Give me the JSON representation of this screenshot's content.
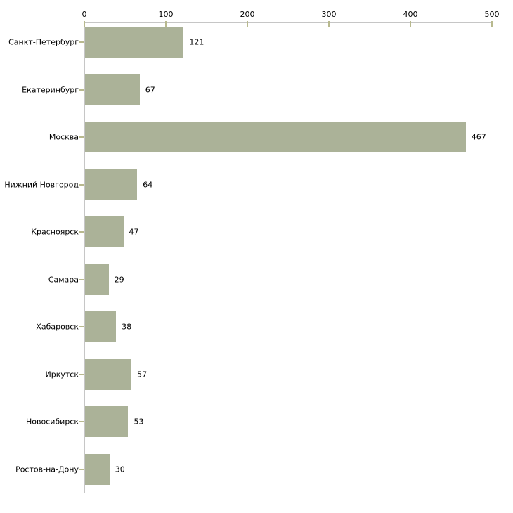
{
  "chart_data": {
    "type": "bar",
    "orientation": "horizontal",
    "title": "",
    "xlabel": "",
    "ylabel": "",
    "categories": [
      "Санкт-Петербург",
      "Екатеринбург",
      "Москва",
      "Нижний Новгород",
      "Красноярск",
      "Самара",
      "Хабаровск",
      "Иркутск",
      "Новосибирск",
      "Ростов-на-Дону"
    ],
    "values": [
      121,
      67,
      467,
      64,
      47,
      29,
      38,
      57,
      53,
      30
    ],
    "value_labels": [
      "121",
      "67",
      "467",
      "64",
      "47",
      "29",
      "38",
      "57",
      "53",
      "30"
    ],
    "xlim": [
      0,
      500
    ],
    "x_ticks": [
      0,
      100,
      200,
      300,
      400,
      500
    ],
    "x_tick_labels": [
      "0",
      "100",
      "200",
      "300",
      "400",
      "500"
    ],
    "axis_position": "top",
    "grid": false,
    "legend": false,
    "colors": {
      "bar_fill": "#abb298",
      "axis_line": "#c6c6c6",
      "tick_mark": "#b8b98e",
      "text": "#000000",
      "background": "#ffffff"
    }
  }
}
